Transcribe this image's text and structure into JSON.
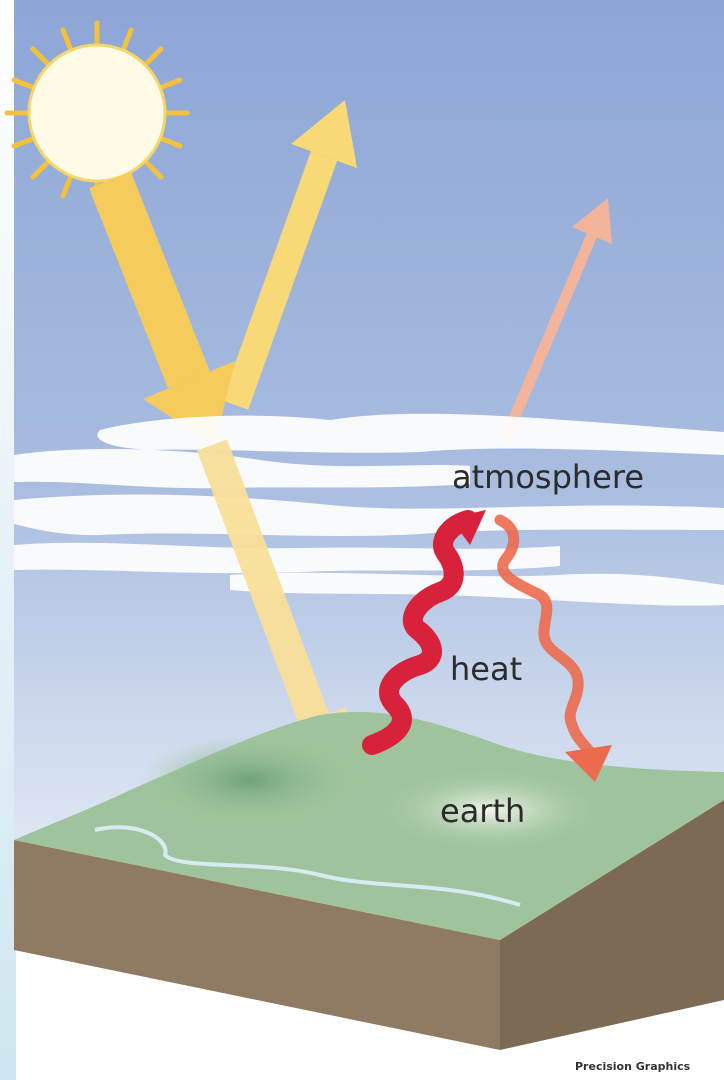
{
  "diagram": {
    "labels": [
      "atmosphere",
      "heat",
      "earth"
    ],
    "credit": "Precision Graphics"
  }
}
